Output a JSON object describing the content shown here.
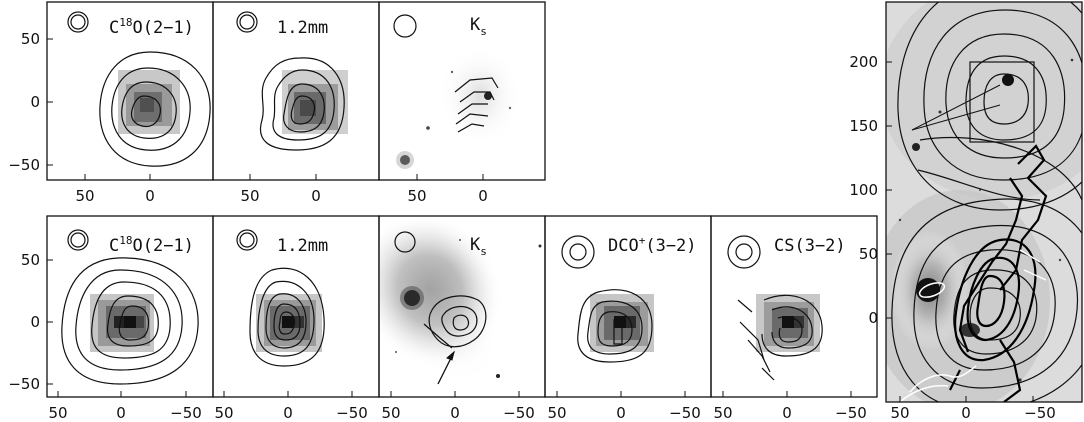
{
  "panels": [
    {
      "id": "top-c18o",
      "label": "C18O(2−1)",
      "label_main": "C",
      "label_sup": "18",
      "label_rest": "O(2−1)",
      "row": "top"
    },
    {
      "id": "top-12mm",
      "label": "1.2mm",
      "row": "top"
    },
    {
      "id": "top-ks",
      "label": "K",
      "label_sub": "s",
      "row": "top"
    },
    {
      "id": "bot-c18o",
      "label": "C18O(2−1)",
      "label_main": "C",
      "label_sup": "18",
      "label_rest": "O(2−1)",
      "row": "bottom"
    },
    {
      "id": "bot-12mm",
      "label": "1.2mm",
      "row": "bottom"
    },
    {
      "id": "bot-ks",
      "label": "K",
      "label_sub": "s",
      "row": "bottom"
    },
    {
      "id": "bot-dco",
      "label": "DCO+(3−2)",
      "label_main": "DCO",
      "label_sup": "+",
      "label_rest": "(3−2)",
      "row": "bottom"
    },
    {
      "id": "bot-cs",
      "label": "CS(3−2)",
      "row": "bottom"
    },
    {
      "id": "large-map",
      "label": "",
      "row": "right"
    }
  ],
  "axes": {
    "top_y_ticks": [
      "50",
      "0",
      "−50"
    ],
    "top_x_ticks": [
      "50",
      "0"
    ],
    "bottom_y_ticks": [
      "50",
      "0",
      "−50"
    ],
    "bottom_x_ticks": [
      "50",
      "0",
      "−50"
    ],
    "right_y_ticks": [
      "200",
      "150",
      "100",
      "50",
      "0"
    ],
    "right_x_ticks": [
      "50",
      "0",
      "−50"
    ]
  }
}
